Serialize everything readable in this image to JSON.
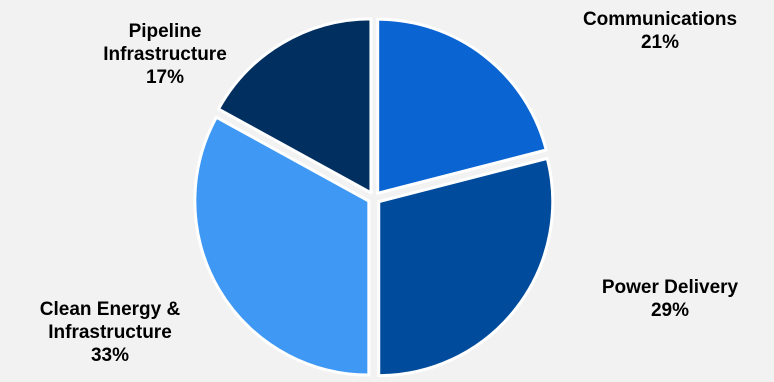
{
  "chart_data": {
    "type": "pie",
    "title": "",
    "start_angle_deg": 0,
    "direction": "clockwise",
    "exploded": true,
    "slices": [
      {
        "label_lines": [
          "Communications"
        ],
        "label": "Communications",
        "value": 21,
        "pct_label": "21%",
        "color": "#0a64d2"
      },
      {
        "label_lines": [
          "Power Delivery"
        ],
        "label": "Power Delivery",
        "value": 29,
        "pct_label": "29%",
        "color": "#004b9b"
      },
      {
        "label_lines": [
          "Clean Energy &",
          "Infrastructure"
        ],
        "label": "Clean Energy & Infrastructure",
        "value": 33,
        "pct_label": "33%",
        "color": "#3f99f4"
      },
      {
        "label_lines": [
          "Pipeline",
          "Infrastructure"
        ],
        "label": "Pipeline Infrastructure",
        "value": 17,
        "pct_label": "17%",
        "color": "#002f60"
      }
    ]
  }
}
